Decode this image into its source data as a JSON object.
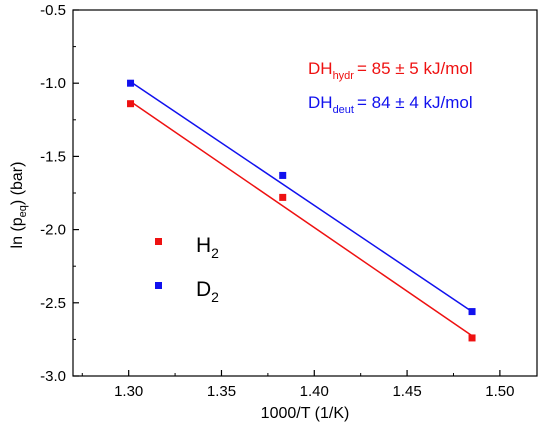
{
  "chart_data": {
    "type": "scatter",
    "xlabel": "1000/T (1/K)",
    "ylabel_main": "ln (p",
    "ylabel_sub": "eq",
    "ylabel_end": ") (bar)",
    "xlim": [
      1.27,
      1.52
    ],
    "ylim": [
      -3.0,
      -0.5
    ],
    "xticks": [
      "1.30",
      "1.35",
      "1.40",
      "1.45",
      "1.50"
    ],
    "yticks": [
      "-0.5",
      "-1.0",
      "-1.5",
      "-2.0",
      "-2.5",
      "-3.0"
    ],
    "grid": false,
    "series": [
      {
        "name_main": "H",
        "name_sub": "2",
        "color": "#ee1111",
        "x": [
          1.301,
          1.383,
          1.485
        ],
        "y": [
          -1.14,
          -1.78,
          -2.74
        ],
        "fit": {
          "x": [
            1.301,
            1.485
          ],
          "y": [
            -1.125,
            -2.725
          ]
        }
      },
      {
        "name_main": "D",
        "name_sub": "2",
        "color": "#1111ee",
        "x": [
          1.301,
          1.383,
          1.485
        ],
        "y": [
          -1.0,
          -1.63,
          -2.56
        ],
        "fit": {
          "x": [
            1.301,
            1.485
          ],
          "y": [
            -0.99,
            -2.56
          ]
        }
      }
    ],
    "annotations": [
      {
        "main": "DH",
        "sub": "hydr",
        "rest": "= 85 ± 5 kJ/mol",
        "color": "#ee1111"
      },
      {
        "main": "DH",
        "sub": "deut",
        "rest": "=  84 ± 4 kJ/mol",
        "color": "#1111ee"
      }
    ],
    "legend_position": "center-left"
  }
}
